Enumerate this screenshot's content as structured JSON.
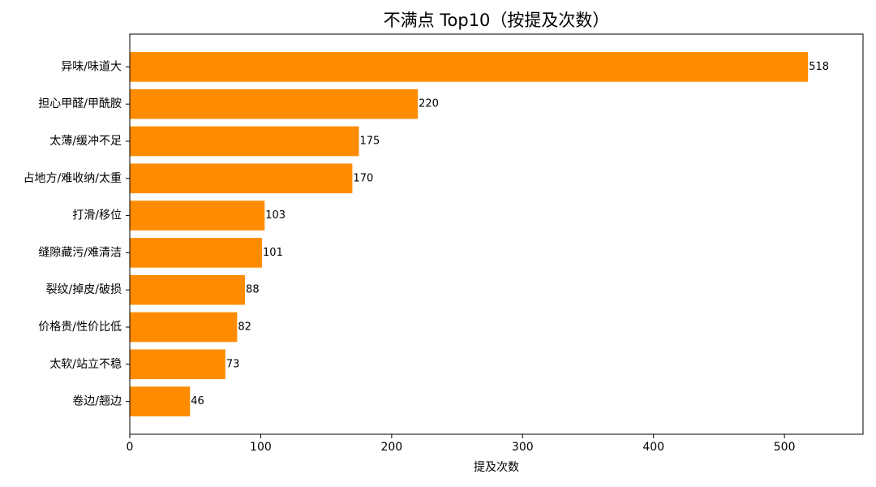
{
  "chart_data": {
    "type": "barh",
    "title": "不满点 Top10（按提及次数）",
    "xlabel": "提及次数",
    "categories": [
      "异味/味道大",
      "担心甲醛/甲酰胺",
      "太薄/缓冲不足",
      "占地方/难收纳/太重",
      "打滑/移位",
      "缝隙藏污/难清洁",
      "裂纹/掉皮/破损",
      "价格贵/性价比低",
      "太软/站立不稳",
      "卷边/翘边"
    ],
    "values": [
      518,
      220,
      175,
      170,
      103,
      101,
      88,
      82,
      73,
      46
    ],
    "color": "#ff8c00",
    "xlim": [
      0,
      560
    ],
    "xticks": [
      0,
      100,
      200,
      300,
      400,
      500
    ],
    "grid": false
  }
}
